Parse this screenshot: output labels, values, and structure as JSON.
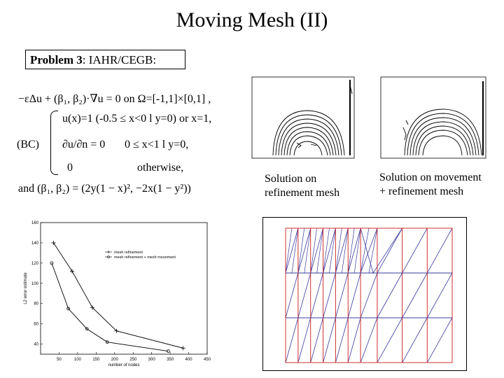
{
  "slide": {
    "title": "Moving Mesh (II)",
    "problem_label": "Problem 3",
    "problem_name": ": IAHR/CEGB:"
  },
  "equations": {
    "pde": "−εΔu + (β₁, β₂)·∇u = 0  on  Ω=[-1,1]×[0,1] ,",
    "bc_label": "(BC)",
    "bc_line1": "u(x)=1    (-0.5 ≤ x<0  l  y=0) or x=1,",
    "bc_line2_left": "∂u/∂n = 0",
    "bc_line2_right": "0 ≤ x<1  l  y=0,",
    "bc_line3_left": "0",
    "bc_line3_right": "otherwise,",
    "and_line": "and  (β₁, β₂) = (2y(1 − x)², −2x(1 − y²))"
  },
  "captions": {
    "refinement": [
      "Solution on",
      "refinement mesh"
    ],
    "movement": [
      "Solution on movement",
      "+ refinement mesh"
    ]
  },
  "chart_data": {
    "type": "line",
    "xlabel": "number of nodes",
    "ylabel": "L2 error estimate",
    "xlim": [
      0,
      450
    ],
    "ylim": [
      30,
      160
    ],
    "xticks": [
      50,
      100,
      150,
      200,
      250,
      300,
      350,
      400,
      450
    ],
    "yticks": [
      40,
      60,
      80,
      100,
      120,
      140,
      160
    ],
    "legend_position": "top-right",
    "series": [
      {
        "name": "mesh refinement",
        "marker": "+",
        "x": [
          35,
          85,
          140,
          205,
          385
        ],
        "y": [
          140,
          112,
          76,
          53,
          36
        ]
      },
      {
        "name": "mesh refinement + mesh movement",
        "marker": "o",
        "x": [
          30,
          75,
          125,
          180,
          345
        ],
        "y": [
          120,
          75,
          55,
          42,
          33
        ]
      }
    ]
  },
  "colors": {
    "mesh_red": "#d03030",
    "mesh_blue": "#3a3aa0"
  }
}
